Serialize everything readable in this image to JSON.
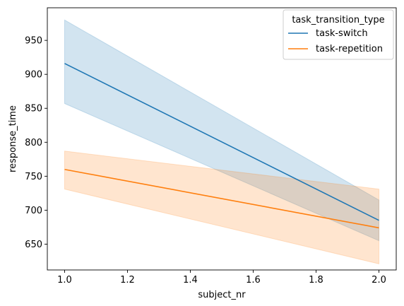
{
  "chart_data": {
    "type": "line",
    "xlabel": "subject_nr",
    "ylabel": "response_time",
    "xlim": [
      0.945,
      2.055
    ],
    "ylim": [
      612,
      998
    ],
    "xticks": [
      1.0,
      1.2,
      1.4,
      1.6,
      1.8,
      2.0
    ],
    "xtick_labels": [
      "1.0",
      "1.2",
      "1.4",
      "1.6",
      "1.8",
      "2.0"
    ],
    "yticks": [
      650,
      700,
      750,
      800,
      850,
      900,
      950
    ],
    "ytick_labels": [
      "650",
      "700",
      "750",
      "800",
      "850",
      "900",
      "950"
    ],
    "grid": false,
    "legend": {
      "title": "task_transition_type",
      "placement": "upper right"
    },
    "series": [
      {
        "name": "task-switch",
        "color": "#1f77b4",
        "x": [
          1.0,
          2.0
        ],
        "values": [
          916,
          685
        ],
        "ci_lower": [
          857,
          655
        ],
        "ci_upper": [
          980,
          715
        ]
      },
      {
        "name": "task-repetition",
        "color": "#ff7f0e",
        "x": [
          1.0,
          2.0
        ],
        "values": [
          760,
          674
        ],
        "ci_lower": [
          731,
          621
        ],
        "ci_upper": [
          787,
          731
        ]
      }
    ]
  }
}
